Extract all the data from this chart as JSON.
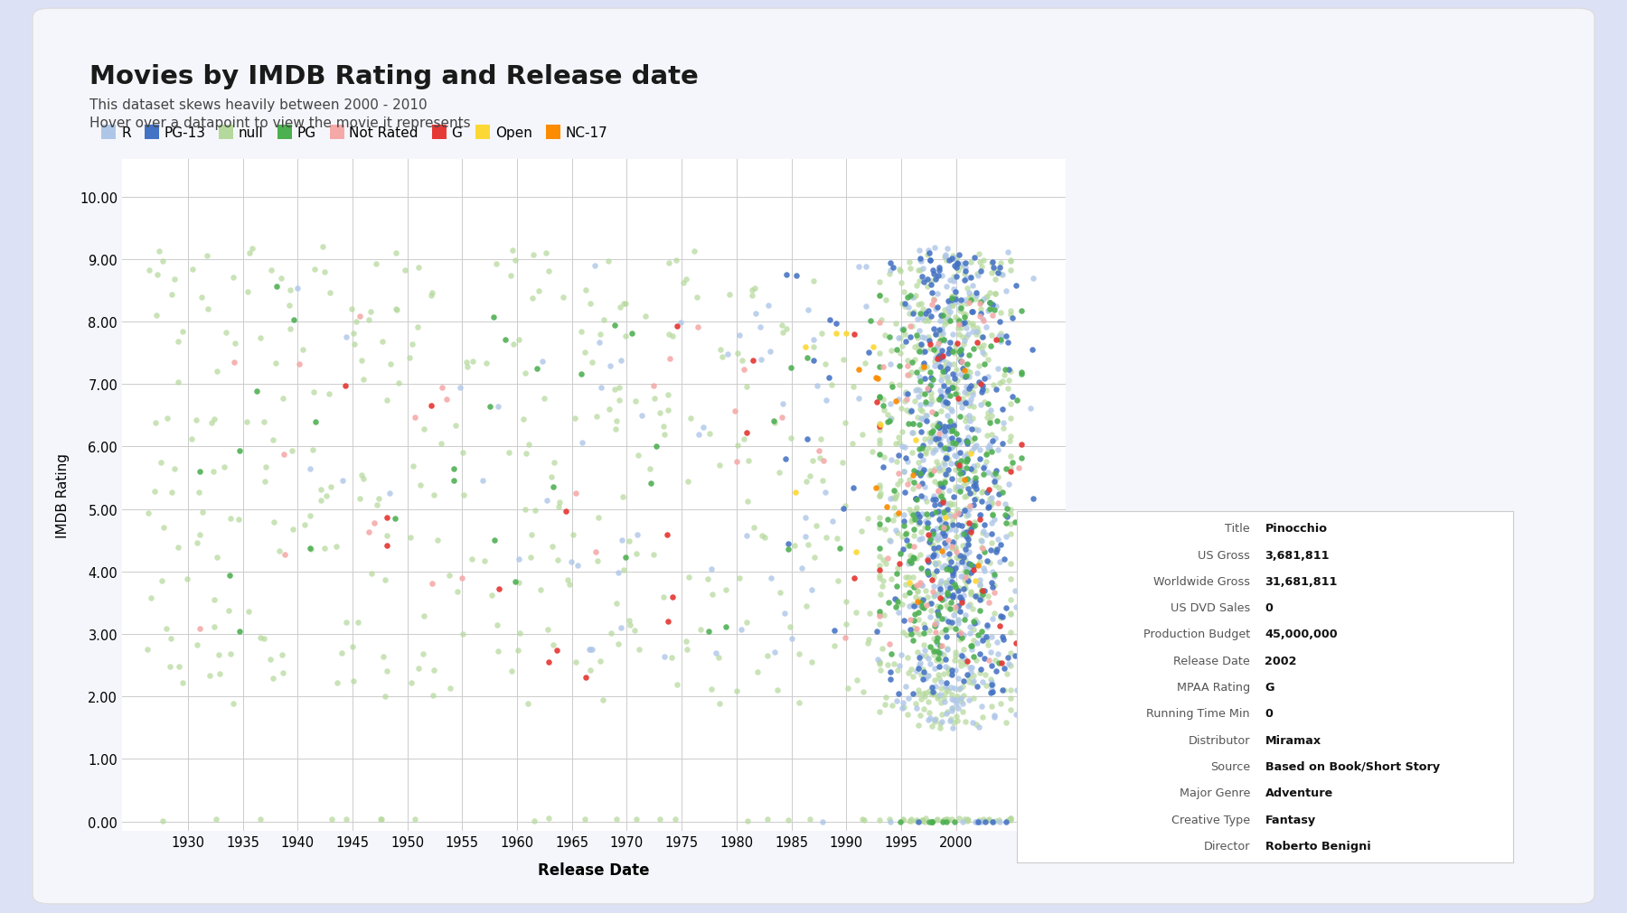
{
  "title": "Movies by IMDB Rating and Release date",
  "subtitle1": "This dataset skews heavily between 2000 - 2010",
  "subtitle2": "Hover over a datapoint to view the movie it represents",
  "xlabel": "Release Date",
  "ylabel": "IMDB Rating",
  "outer_background": "#dde1f5",
  "card_background": "#f5f6fb",
  "plot_background": "#ffffff",
  "xlim": [
    1924,
    2010
  ],
  "ylim": [
    -0.15,
    10.6
  ],
  "yticks": [
    0.0,
    1.0,
    2.0,
    3.0,
    4.0,
    5.0,
    6.0,
    7.0,
    8.0,
    9.0,
    10.0
  ],
  "xticks": [
    1930,
    1935,
    1940,
    1945,
    1950,
    1955,
    1960,
    1965,
    1970,
    1975,
    1980,
    1985,
    1990,
    1995,
    2000
  ],
  "legend_entries": [
    {
      "label": "R",
      "color": "#aec6e8"
    },
    {
      "label": "PG-13",
      "color": "#4472c4"
    },
    {
      "label": "null",
      "color": "#b5d99c"
    },
    {
      "label": "PG",
      "color": "#4caf50"
    },
    {
      "label": "Not Rated",
      "color": "#f4a9a8"
    },
    {
      "label": "G",
      "color": "#e53935"
    },
    {
      "label": "Open",
      "color": "#fdd835"
    },
    {
      "label": "NC-17",
      "color": "#fb8c00"
    }
  ],
  "tooltip_fields": [
    [
      "Title",
      "Pinocchio"
    ],
    [
      "US Gross",
      "3,681,811"
    ],
    [
      "Worldwide Gross",
      "31,681,811"
    ],
    [
      "US DVD Sales",
      "0"
    ],
    [
      "Production Budget",
      "45,000,000"
    ],
    [
      "Release Date",
      "2002"
    ],
    [
      "MPAA Rating",
      "G"
    ],
    [
      "Running Time Min",
      "0"
    ],
    [
      "Distributor",
      "Miramax"
    ],
    [
      "Source",
      "Based on Book/Short Story"
    ],
    [
      "Major Genre",
      "Adventure"
    ],
    [
      "Creative Type",
      "Fantasy"
    ],
    [
      "Director",
      "Roberto Benigni"
    ]
  ],
  "seed": 42
}
